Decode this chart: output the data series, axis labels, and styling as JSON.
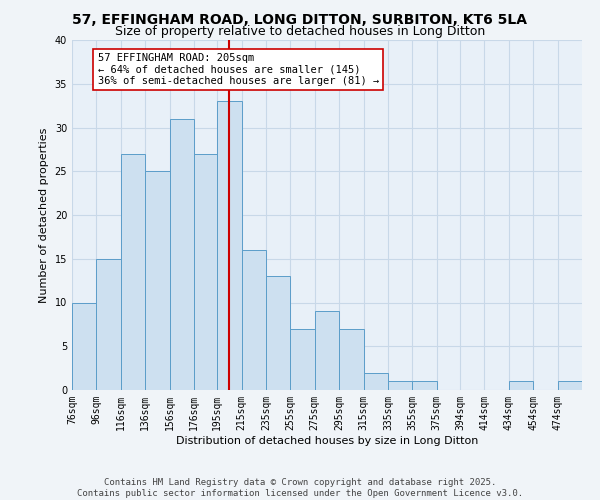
{
  "title_line1": "57, EFFINGHAM ROAD, LONG DITTON, SURBITON, KT6 5LA",
  "title_line2": "Size of property relative to detached houses in Long Ditton",
  "xlabel": "Distribution of detached houses by size in Long Ditton",
  "ylabel": "Number of detached properties",
  "bin_edges": [
    76,
    96,
    116,
    136,
    156,
    176,
    195,
    215,
    235,
    255,
    275,
    295,
    315,
    335,
    355,
    375,
    394,
    414,
    434,
    454,
    474,
    494
  ],
  "bin_labels": [
    "76sqm",
    "96sqm",
    "116sqm",
    "136sqm",
    "156sqm",
    "176sqm",
    "195sqm",
    "215sqm",
    "235sqm",
    "255sqm",
    "275sqm",
    "295sqm",
    "315sqm",
    "335sqm",
    "355sqm",
    "375sqm",
    "394sqm",
    "414sqm",
    "434sqm",
    "454sqm",
    "474sqm"
  ],
  "bar_heights": [
    10,
    15,
    27,
    25,
    31,
    27,
    33,
    16,
    13,
    7,
    9,
    7,
    2,
    1,
    1,
    0,
    0,
    0,
    1,
    0,
    1
  ],
  "bar_face_color": "#cde0f0",
  "bar_edge_color": "#5b9dc9",
  "grid_color": "#c8d8e8",
  "bg_color": "#e8f0f8",
  "fig_bg_color": "#f0f4f8",
  "vline_x": 205,
  "vline_color": "#cc0000",
  "annotation_text": "57 EFFINGHAM ROAD: 205sqm\n← 64% of detached houses are smaller (145)\n36% of semi-detached houses are larger (81) →",
  "annotation_box_color": "#ffffff",
  "annotation_box_edge": "#cc0000",
  "ylim": [
    0,
    40
  ],
  "yticks": [
    0,
    5,
    10,
    15,
    20,
    25,
    30,
    35,
    40
  ],
  "footer_text": "Contains HM Land Registry data © Crown copyright and database right 2025.\nContains public sector information licensed under the Open Government Licence v3.0.",
  "title_fontsize": 10,
  "subtitle_fontsize": 9,
  "axis_label_fontsize": 8,
  "tick_fontsize": 7,
  "annotation_fontsize": 7.5,
  "footer_fontsize": 6.5
}
